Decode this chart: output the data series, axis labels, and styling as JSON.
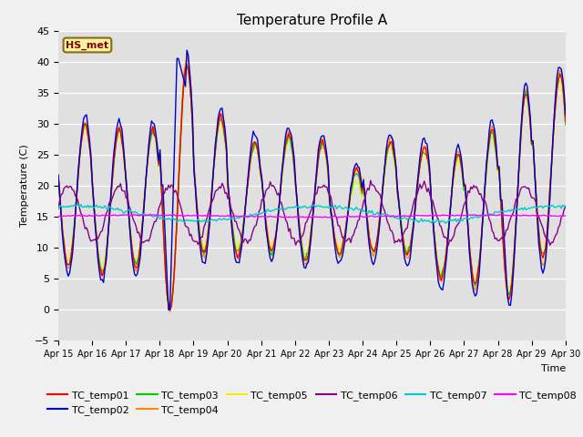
{
  "title": "Temperature Profile A",
  "xlabel": "Time",
  "ylabel": "Temperature (C)",
  "ylim": [
    -5,
    45
  ],
  "annotation_text": "HS_met",
  "plot_bg_color": "#e0e0e0",
  "fig_bg_color": "#f0f0f0",
  "series_colors": {
    "TC_temp01": "#ff0000",
    "TC_temp02": "#0000cc",
    "TC_temp03": "#00cc00",
    "TC_temp04": "#ff8800",
    "TC_temp05": "#eeee00",
    "TC_temp06": "#880088",
    "TC_temp07": "#00cccc",
    "TC_temp08": "#ff00ff"
  },
  "x_tick_labels": [
    "Apr 15",
    "Apr 16",
    "Apr 17",
    "Apr 18",
    "Apr 19",
    "Apr 20",
    "Apr 21",
    "Apr 22",
    "Apr 23",
    "Apr 24",
    "Apr 25",
    "Apr 26",
    "Apr 27",
    "Apr 28",
    "Apr 29",
    "Apr 30"
  ],
  "x_tick_positions": [
    0,
    1,
    2,
    3,
    4,
    5,
    6,
    7,
    8,
    9,
    10,
    11,
    12,
    13,
    14,
    15
  ],
  "yticks": [
    -5,
    0,
    5,
    10,
    15,
    20,
    25,
    30,
    35,
    40,
    45
  ],
  "day_params": [
    [
      7,
      30
    ],
    [
      6,
      29
    ],
    [
      7,
      29
    ],
    [
      0,
      40
    ],
    [
      9,
      31
    ],
    [
      9,
      27
    ],
    [
      9,
      28
    ],
    [
      8,
      27
    ],
    [
      9,
      22
    ],
    [
      9,
      27
    ],
    [
      9,
      26
    ],
    [
      5,
      25
    ],
    [
      4,
      29
    ],
    [
      2,
      35
    ],
    [
      8,
      38
    ]
  ]
}
